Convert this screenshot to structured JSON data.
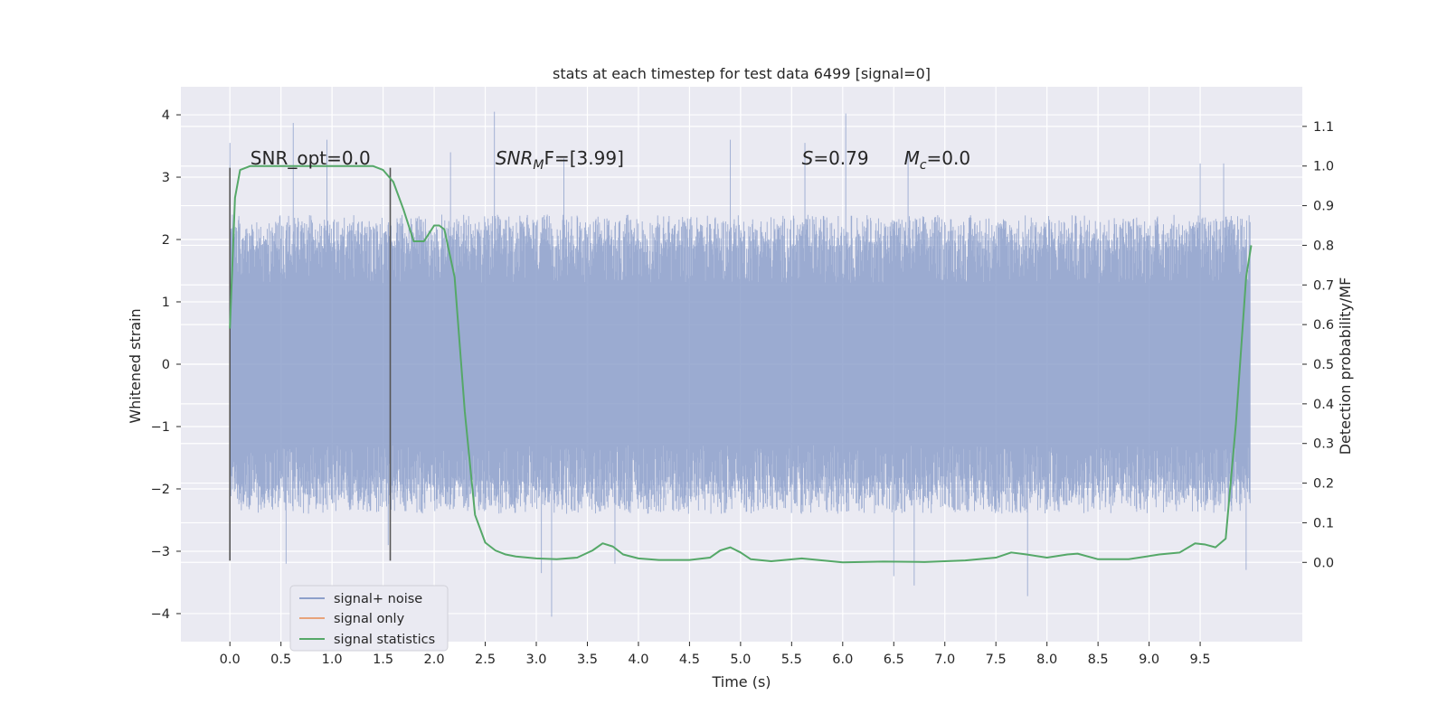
{
  "chart_data": {
    "type": "line",
    "title": "stats at each timestep for test data 6499 [signal=0]",
    "xlabel": "Time (s)",
    "ylabel_left": "Whitened strain",
    "ylabel_right": "Detection probability/MF",
    "xlim": [
      -0.48,
      10.5
    ],
    "ylim_left": [
      -4.45,
      4.45
    ],
    "ylim_right": [
      -0.2,
      1.2
    ],
    "x_ticks": [
      0.0,
      0.5,
      1.0,
      1.5,
      2.0,
      2.5,
      3.0,
      3.5,
      4.0,
      4.5,
      5.0,
      5.5,
      6.0,
      6.5,
      7.0,
      7.5,
      8.0,
      8.5,
      9.0,
      9.5
    ],
    "x_tick_labels": [
      "0.0",
      "0.5",
      "1.0",
      "1.5",
      "2.0",
      "2.5",
      "3.0",
      "3.5",
      "4.0",
      "4.5",
      "5.0",
      "5.5",
      "6.0",
      "6.5",
      "7.0",
      "7.5",
      "8.0",
      "8.5",
      "9.0",
      "9.5"
    ],
    "y_left_ticks": [
      -4,
      -3,
      -2,
      -1,
      0,
      1,
      2,
      3,
      4
    ],
    "y_left_tick_labels": [
      "−4",
      "−3",
      "−2",
      "−1",
      "0",
      "1",
      "2",
      "3",
      "4"
    ],
    "y_right_ticks": [
      0.0,
      0.1,
      0.2,
      0.3,
      0.4,
      0.5,
      0.6,
      0.7,
      0.8,
      0.9,
      1.0,
      1.1
    ],
    "y_right_tick_labels": [
      "0.0",
      "0.1",
      "0.2",
      "0.3",
      "0.4",
      "0.5",
      "0.6",
      "0.7",
      "0.8",
      "0.9",
      "1.0",
      "1.1"
    ],
    "grid": true,
    "legend_position": "lower-left",
    "annotations": [
      {
        "text": "SNR_opt=0.0",
        "x": 0.2,
        "y": 3.2,
        "math": false
      },
      {
        "text": "SNR",
        "sub": "M",
        "tail": "F=[3.99]",
        "x": 2.6,
        "y": 3.2,
        "math": true
      },
      {
        "text": "S",
        "tail": "=0.79",
        "x": 5.6,
        "y": 3.2,
        "math": true
      },
      {
        "text": "M",
        "sub": "c",
        "tail": "=0.0",
        "x": 6.6,
        "y": 3.2,
        "math": true
      }
    ],
    "vertical_markers": [
      {
        "x": 0.0,
        "y": [
          -3.15,
          3.15
        ]
      },
      {
        "x": 1.57,
        "y": [
          -3.15,
          3.15
        ]
      }
    ],
    "series": [
      {
        "name": "signal+ noise",
        "color": "#8da0cb",
        "axis": "left",
        "kind": "noise",
        "t_range": [
          0.0,
          9.99
        ],
        "typical_amplitude": 1.3,
        "peaks": [
          {
            "t": 0.0,
            "v": 3.55
          },
          {
            "t": 0.62,
            "v": 3.87
          },
          {
            "t": 0.95,
            "v": 3.6
          },
          {
            "t": 2.16,
            "v": 3.4
          },
          {
            "t": 2.59,
            "v": 4.05
          },
          {
            "t": 3.27,
            "v": 3.3
          },
          {
            "t": 4.9,
            "v": 3.6
          },
          {
            "t": 5.63,
            "v": 3.55
          },
          {
            "t": 6.03,
            "v": 4.02
          },
          {
            "t": 6.64,
            "v": 3.4
          },
          {
            "t": 9.5,
            "v": 3.22
          },
          {
            "t": 9.73,
            "v": 3.22
          },
          {
            "t": 0.55,
            "v": -3.2
          },
          {
            "t": 1.55,
            "v": -2.9
          },
          {
            "t": 3.05,
            "v": -3.35
          },
          {
            "t": 3.15,
            "v": -4.05
          },
          {
            "t": 3.77,
            "v": -3.2
          },
          {
            "t": 6.5,
            "v": -3.4
          },
          {
            "t": 6.7,
            "v": -3.55
          },
          {
            "t": 7.81,
            "v": -3.72
          },
          {
            "t": 9.95,
            "v": -3.3
          }
        ]
      },
      {
        "name": "signal only",
        "color": "#e8a37a",
        "axis": "left",
        "x": [],
        "y": []
      },
      {
        "name": "signal statistics",
        "color": "#55a868",
        "axis": "right",
        "x": [
          0.0,
          0.05,
          0.1,
          0.2,
          0.3,
          0.5,
          1.0,
          1.4,
          1.5,
          1.6,
          1.7,
          1.8,
          1.9,
          2.0,
          2.05,
          2.1,
          2.2,
          2.3,
          2.4,
          2.5,
          2.6,
          2.7,
          2.8,
          3.0,
          3.2,
          3.4,
          3.55,
          3.65,
          3.75,
          3.85,
          4.0,
          4.2,
          4.5,
          4.7,
          4.8,
          4.9,
          5.0,
          5.1,
          5.3,
          5.6,
          6.0,
          6.4,
          6.8,
          7.2,
          7.5,
          7.65,
          7.8,
          8.0,
          8.2,
          8.3,
          8.5,
          8.8,
          9.1,
          9.3,
          9.45,
          9.55,
          9.65,
          9.75,
          9.85,
          9.95,
          10.0
        ],
        "y": [
          0.59,
          0.92,
          0.99,
          1.0,
          1.0,
          1.0,
          1.0,
          1.0,
          0.99,
          0.96,
          0.89,
          0.81,
          0.81,
          0.85,
          0.85,
          0.84,
          0.72,
          0.38,
          0.12,
          0.05,
          0.03,
          0.02,
          0.015,
          0.01,
          0.008,
          0.012,
          0.03,
          0.048,
          0.04,
          0.02,
          0.01,
          0.006,
          0.006,
          0.012,
          0.03,
          0.038,
          0.025,
          0.008,
          0.003,
          0.01,
          0.0,
          0.002,
          0.001,
          0.005,
          0.012,
          0.025,
          0.02,
          0.012,
          0.02,
          0.022,
          0.008,
          0.008,
          0.02,
          0.025,
          0.048,
          0.045,
          0.038,
          0.06,
          0.35,
          0.72,
          0.8
        ]
      }
    ]
  }
}
